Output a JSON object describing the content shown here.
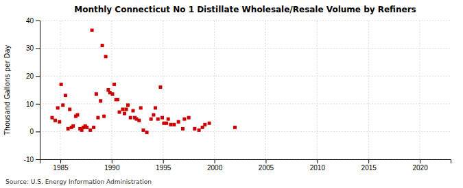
{
  "chart_data": {
    "type": "scatter",
    "title": "Monthly Connecticut No 1 Distillate Wholesale/Resale Volume by Refiners",
    "ylabel": "Thousand Gallons per Day",
    "annotations": [
      "Source: U.S. Energy Information Administration"
    ],
    "color": "#cc0000",
    "marker": "square",
    "grid": true,
    "xlim": [
      1983,
      2023
    ],
    "ylim": [
      -10,
      40
    ],
    "xticks": [
      1985,
      1990,
      1995,
      2000,
      2005,
      2010,
      2015,
      2020
    ],
    "yticks": [
      -10,
      0,
      10,
      20,
      30,
      40
    ],
    "x": [
      1984.2,
      1984.5,
      1984.75,
      1984.92,
      1985.08,
      1985.25,
      1985.5,
      1985.75,
      1985.92,
      1986.08,
      1986.25,
      1986.5,
      1986.67,
      1986.92,
      1987.08,
      1987.25,
      1987.42,
      1987.58,
      1987.92,
      1988.08,
      1988.25,
      1988.5,
      1988.67,
      1988.92,
      1989.08,
      1989.25,
      1989.42,
      1989.67,
      1989.83,
      1990.08,
      1990.25,
      1990.42,
      1990.58,
      1990.75,
      1991.08,
      1991.25,
      1991.42,
      1991.58,
      1991.83,
      1992.08,
      1992.25,
      1992.42,
      1992.67,
      1992.83,
      1993.08,
      1993.42,
      1993.83,
      1994.08,
      1994.25,
      1994.5,
      1994.75,
      1994.92,
      1995.08,
      1995.33,
      1995.5,
      1995.75,
      1996.08,
      1996.5,
      1996.92,
      1997.08,
      1997.5,
      1998.08,
      1998.5,
      1998.83,
      1999.08,
      1999.5,
      2002.0
    ],
    "y": [
      5.0,
      4.0,
      8.5,
      3.5,
      17.0,
      9.5,
      13.0,
      1.0,
      8.0,
      1.5,
      2.0,
      5.5,
      6.0,
      1.0,
      0.5,
      1.5,
      2.0,
      1.5,
      0.5,
      36.5,
      1.5,
      13.5,
      5.0,
      11.0,
      31.0,
      5.5,
      27.0,
      15.0,
      14.0,
      13.5,
      17.0,
      11.5,
      11.5,
      7.0,
      8.0,
      6.5,
      8.0,
      9.5,
      5.0,
      7.5,
      5.0,
      4.5,
      4.0,
      8.5,
      0.5,
      -0.3,
      4.5,
      6.0,
      8.5,
      4.5,
      16.0,
      5.0,
      3.0,
      3.0,
      4.5,
      2.5,
      2.5,
      3.5,
      1.0,
      4.5,
      5.0,
      1.0,
      0.5,
      1.5,
      2.5,
      3.0,
      1.5
    ]
  }
}
